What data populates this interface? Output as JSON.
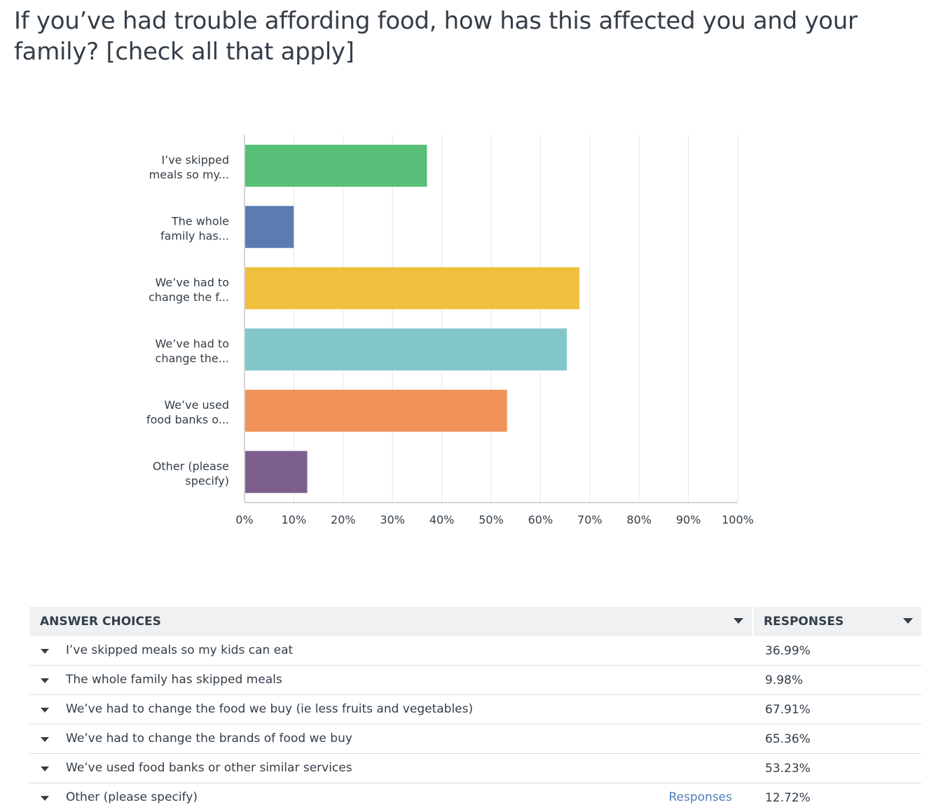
{
  "question_title": "If you’ve had trouble affording food, how has this affected you and your family? [check all that apply]",
  "chart_data": {
    "type": "bar",
    "orientation": "horizontal",
    "title": "If you’ve had trouble affording food, how has this affected you and your family? [check all that apply]",
    "categories": [
      [
        "I’ve skipped",
        "meals so my..."
      ],
      [
        "The whole",
        "family has..."
      ],
      [
        "We’ve had to",
        "change the f..."
      ],
      [
        "We’ve had to",
        "change the..."
      ],
      [
        "We’ve used",
        "food banks o..."
      ],
      [
        "Other (please",
        "specify)"
      ]
    ],
    "values": [
      36.99,
      9.98,
      67.91,
      65.36,
      53.23,
      12.72
    ],
    "colors": [
      "#57bf77",
      "#5b7bb3",
      "#efc03e",
      "#83c6ca",
      "#f0925a",
      "#7b5f8c"
    ],
    "xlim": [
      0,
      100
    ],
    "xticks": [
      "0%",
      "10%",
      "20%",
      "30%",
      "40%",
      "50%",
      "60%",
      "70%",
      "80%",
      "90%",
      "100%"
    ],
    "grid": true,
    "legend": "none"
  },
  "table": {
    "header_choices": "ANSWER CHOICES",
    "header_responses": "RESPONSES",
    "rows": [
      {
        "label": "I’ve skipped meals so my kids can eat",
        "pct": "36.99%"
      },
      {
        "label": "The whole family has skipped meals",
        "pct": "9.98%"
      },
      {
        "label": "We’ve had to change the food we buy (ie less fruits and vegetables)",
        "pct": "67.91%"
      },
      {
        "label": "We’ve had to change the brands of food we buy",
        "pct": "65.36%"
      },
      {
        "label": "We’ve used food banks or other similar services",
        "pct": "53.23%"
      },
      {
        "label": "Other (please specify)",
        "pct": "12.72%",
        "link": "Responses"
      }
    ]
  }
}
